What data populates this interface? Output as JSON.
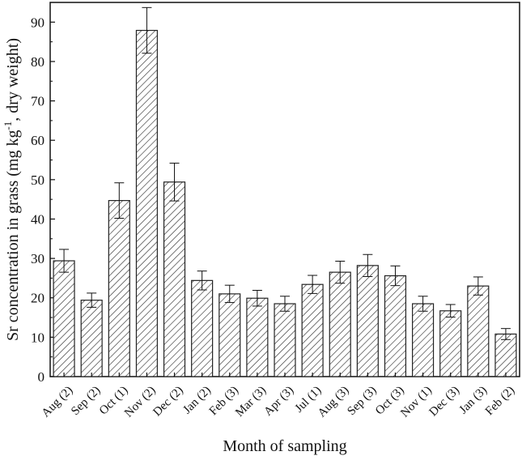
{
  "chart_data": {
    "type": "bar",
    "categories": [
      "Aug (2)",
      "Sep (2)",
      "Oct (1)",
      "Nov (2)",
      "Dec (2)",
      "Jan (2)",
      "Feb (3)",
      "Mar (3)",
      "Apr (3)",
      "Jul (1)",
      "Aug (3)",
      "Sep (3)",
      "Oct (3)",
      "Nov (1)",
      "Dec (3)",
      "Jan (3)",
      "Feb (2)"
    ],
    "values": [
      29.4,
      19.4,
      44.7,
      87.9,
      49.4,
      24.4,
      21.0,
      19.9,
      18.5,
      23.4,
      26.5,
      28.2,
      25.6,
      18.5,
      16.7,
      23.0,
      10.8
    ],
    "errors": [
      2.9,
      1.8,
      4.5,
      5.8,
      4.8,
      2.4,
      2.2,
      2.0,
      1.9,
      2.3,
      2.8,
      2.8,
      2.5,
      1.9,
      1.6,
      2.3,
      1.4
    ],
    "xlabel": "Month of sampling",
    "ylabel": "Sr concentration in grass (mg kg",
    "ylabel_sup": "-1",
    "ylabel_end": ", dry weight)",
    "ylim": [
      0,
      95
    ],
    "yticks": [
      0,
      10,
      20,
      30,
      40,
      50,
      60,
      70,
      80,
      90
    ],
    "grid": false,
    "legend": "none",
    "fill": "hatched diagonal lines",
    "colors": {
      "bar_stroke": "#222222",
      "hatch": "#333333",
      "axis": "#111111",
      "bar_fill": "#ffffff"
    }
  }
}
